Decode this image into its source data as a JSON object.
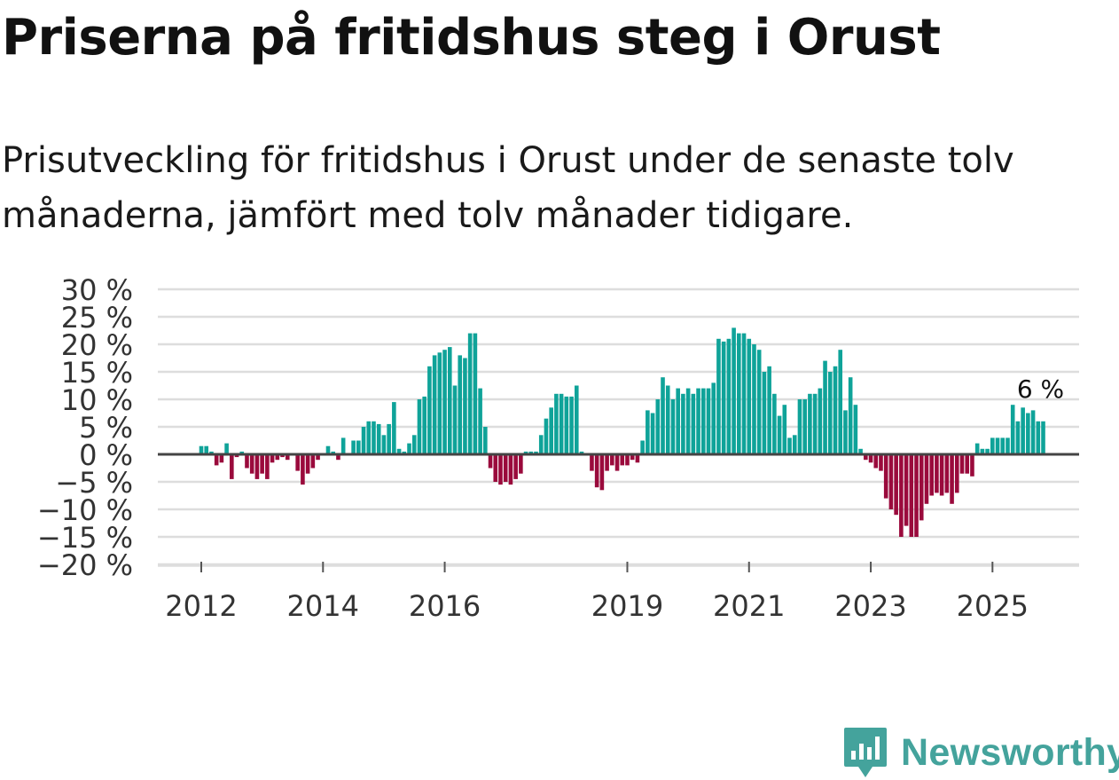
{
  "header": {
    "title": "Priserna på fritidshus steg i Orust",
    "subtitle": "Prisutveckling för fritidshus i Orust under de senaste tolv månaderna, jämfört med tolv månader tidigare."
  },
  "brand": {
    "name": "Newsworthy"
  },
  "colors": {
    "positive": "#0fa399",
    "negative": "#9a0a3c",
    "grid": "#dddddd",
    "zero": "#444444",
    "text": "#333333"
  },
  "chart_data": {
    "type": "bar",
    "title": "Priserna på fritidshus steg i Orust",
    "ylabel": "",
    "xlabel": "",
    "ylim": [
      -20,
      30
    ],
    "yticks": [
      {
        "value": 30,
        "label": "30 %"
      },
      {
        "value": 25,
        "label": "25 %"
      },
      {
        "value": 20,
        "label": "20 %"
      },
      {
        "value": 15,
        "label": "15 %"
      },
      {
        "value": 10,
        "label": "10 %"
      },
      {
        "value": 5,
        "label": "5 %"
      },
      {
        "value": 0,
        "label": "0 %"
      },
      {
        "value": -5,
        "label": "−5 %"
      },
      {
        "value": -10,
        "label": "−10 %"
      },
      {
        "value": -15,
        "label": "−15 %"
      },
      {
        "value": -20,
        "label": "−20 %"
      }
    ],
    "xticks": [
      {
        "index": 0,
        "label": "2012"
      },
      {
        "index": 24,
        "label": "2014"
      },
      {
        "index": 48,
        "label": "2016"
      },
      {
        "index": 84,
        "label": "2019"
      },
      {
        "index": 108,
        "label": "2021"
      },
      {
        "index": 132,
        "label": "2023"
      },
      {
        "index": 156,
        "label": "2025"
      }
    ],
    "start": "2012-01",
    "last_label": "6 %",
    "values": [
      1.5,
      1.5,
      0.5,
      -2.0,
      -1.5,
      2.0,
      -4.5,
      -0.5,
      0.5,
      -2.5,
      -3.5,
      -4.5,
      -3.5,
      -4.5,
      -1.5,
      -1.0,
      -0.5,
      -1.0,
      0.0,
      -3.0,
      -5.5,
      -3.5,
      -2.5,
      -1.0,
      0.0,
      1.5,
      0.5,
      -1.0,
      3.0,
      0.0,
      2.5,
      2.5,
      5.0,
      6.0,
      6.0,
      5.5,
      3.5,
      5.5,
      9.5,
      1.0,
      0.5,
      2.0,
      3.5,
      10.0,
      10.5,
      16.0,
      18.0,
      18.5,
      19.0,
      19.5,
      12.5,
      18.0,
      17.5,
      22.0,
      22.0,
      12.0,
      5.0,
      -2.5,
      -5.0,
      -5.5,
      -5.0,
      -5.5,
      -4.5,
      -3.5,
      0.5,
      0.5,
      0.5,
      3.5,
      6.5,
      8.5,
      11.0,
      11.0,
      10.5,
      10.5,
      12.5,
      0.5,
      0.0,
      -3.0,
      -6.0,
      -6.5,
      -3.0,
      -2.0,
      -3.0,
      -2.0,
      -2.0,
      -1.0,
      -1.5,
      2.5,
      8.0,
      7.5,
      10.0,
      14.0,
      12.5,
      10.0,
      12.0,
      11.0,
      12.0,
      11.0,
      12.0,
      12.0,
      12.0,
      13.0,
      21.0,
      20.5,
      21.0,
      23.0,
      22.0,
      22.0,
      21.0,
      20.0,
      19.0,
      15.0,
      16.0,
      11.0,
      7.0,
      9.0,
      3.0,
      3.5,
      10.0,
      10.0,
      11.0,
      11.0,
      12.0,
      17.0,
      15.0,
      16.0,
      19.0,
      8.0,
      14.0,
      9.0,
      1.0,
      -1.0,
      -1.5,
      -2.5,
      -3.0,
      -8.0,
      -10.0,
      -11.0,
      -15.0,
      -13.0,
      -15.0,
      -15.0,
      -12.0,
      -9.0,
      -7.5,
      -7.0,
      -7.5,
      -7.0,
      -9.0,
      -7.0,
      -3.5,
      -3.5,
      -4.0,
      2.0,
      1.0,
      1.0,
      3.0,
      3.0,
      3.0,
      3.0,
      9.0,
      6.0,
      8.5,
      7.5,
      8.0,
      6.0,
      6.0
    ]
  }
}
